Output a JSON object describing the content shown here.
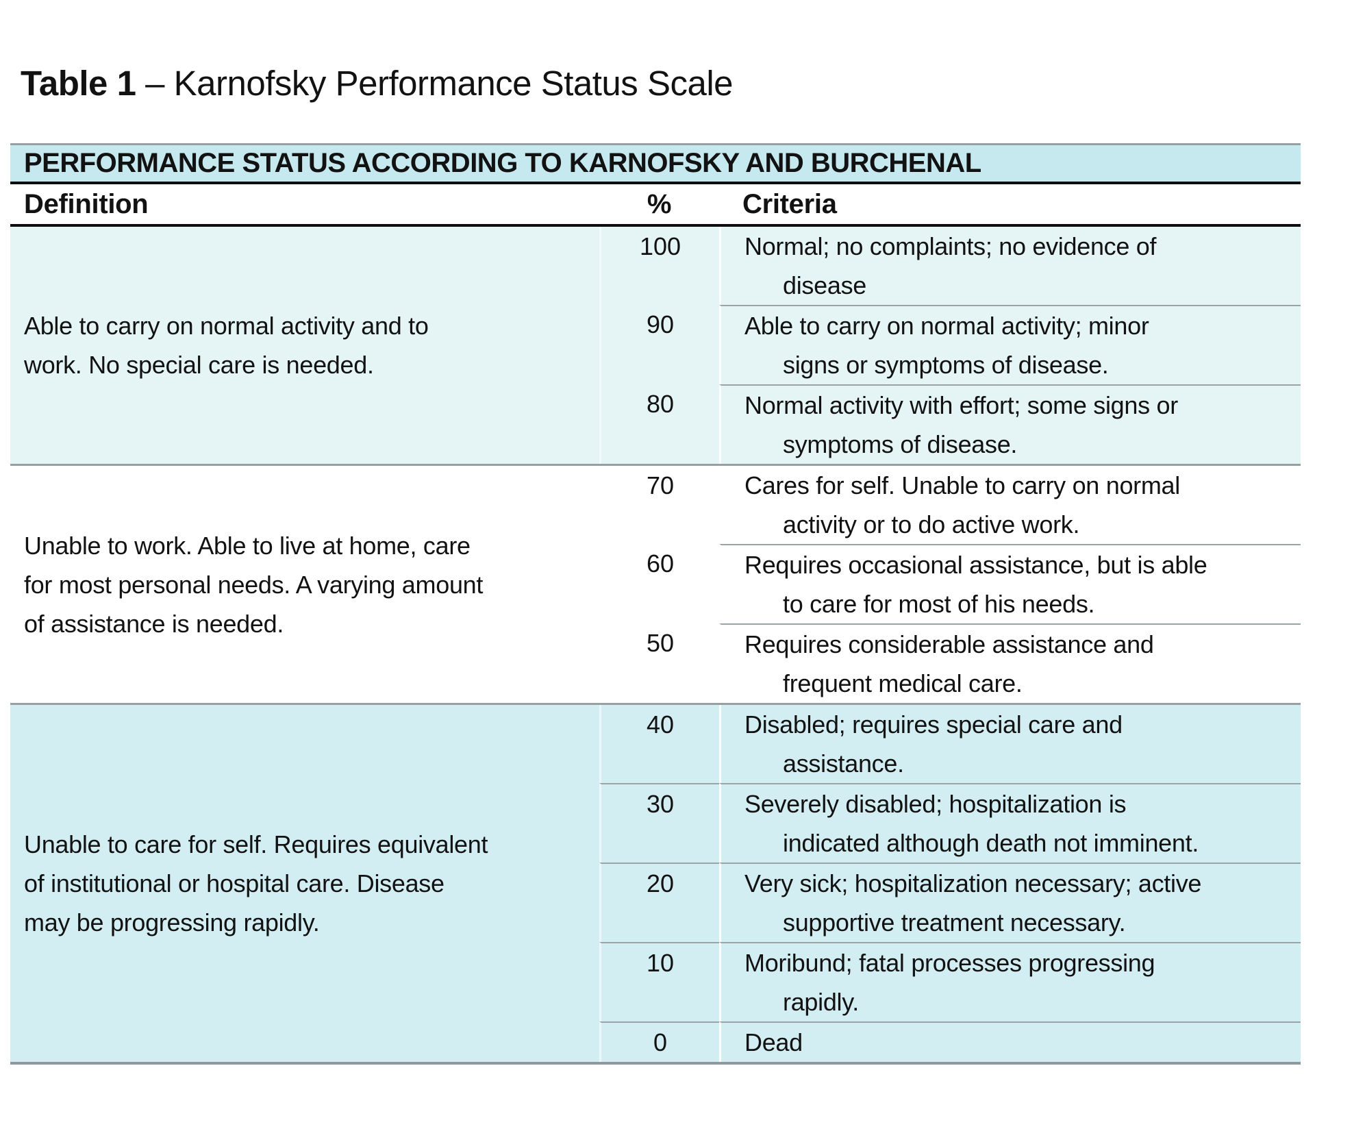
{
  "caption": {
    "bold": "Table 1",
    "rest": " – Karnofsky Performance Status Scale"
  },
  "table": {
    "header_band": "PERFORMANCE STATUS ACCORDING TO KARNOFSKY AND BURCHENAL",
    "columns": {
      "definition": "Definition",
      "percent": "%",
      "criteria": "Criteria"
    },
    "groups": [
      {
        "definition": "Able to carry on normal activity and to\nwork. No special care is needed.",
        "rows": [
          {
            "percent": "100",
            "criteria": "Normal; no complaints; no evidence of\ndisease"
          },
          {
            "percent": "90",
            "criteria": "Able to carry on normal activity; minor\nsigns or symptoms of disease."
          },
          {
            "percent": "80",
            "criteria": "Normal activity with effort; some signs or\nsymptoms of disease."
          }
        ]
      },
      {
        "definition": "Unable to work. Able to live at home, care\nfor most personal needs. A varying amount\nof assistance is needed.",
        "rows": [
          {
            "percent": "70",
            "criteria": "Cares for self. Unable to carry on normal\nactivity or to do active work."
          },
          {
            "percent": "60",
            "criteria": "Requires occasional assistance, but is able\nto care for most of his needs."
          },
          {
            "percent": "50",
            "criteria": "Requires considerable assistance and\nfrequent medical care."
          }
        ]
      },
      {
        "definition": "Unable to care for self. Requires equivalent\nof institutional or hospital care. Disease\nmay be progressing rapidly.",
        "rows": [
          {
            "percent": "40",
            "criteria": "Disabled; requires special care and\nassistance."
          },
          {
            "percent": "30",
            "criteria": "Severely disabled; hospitalization is\nindicated although death not imminent."
          },
          {
            "percent": "20",
            "criteria": "Very sick; hospitalization necessary; active\nsupportive treatment necessary."
          },
          {
            "percent": "10",
            "criteria": "Moribund; fatal processes progressing\nrapidly."
          },
          {
            "percent": "0",
            "criteria": "Dead"
          }
        ]
      }
    ]
  },
  "colors": {
    "header_band_bg": "#c6e9ef",
    "group1_bg": "#e5f4f5",
    "group2_bg": "#ffffff",
    "group3_bg": "#d3eef3",
    "rule_black": "#0d0d0d",
    "rule_gray": "#96a0a3",
    "text": "#121212"
  }
}
